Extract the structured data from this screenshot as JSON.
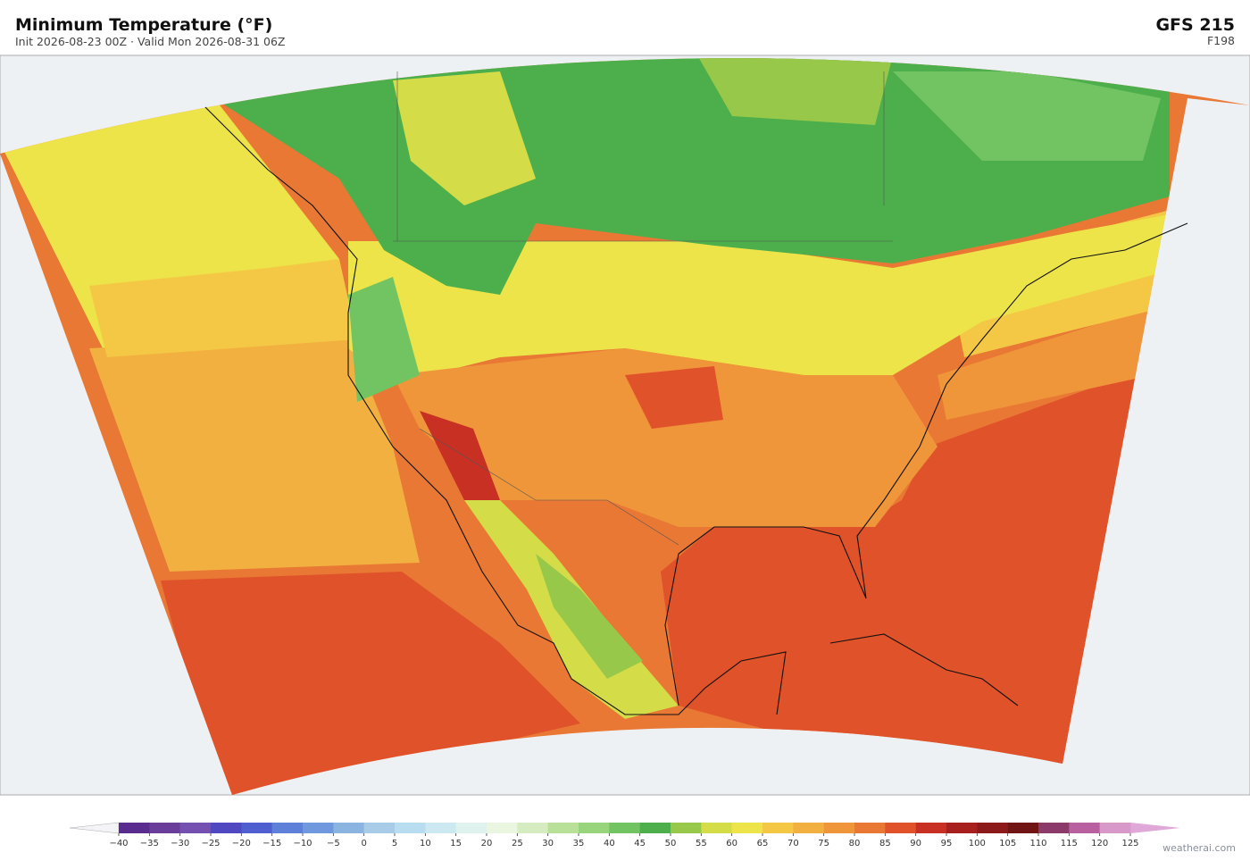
{
  "header": {
    "title": "Minimum Temperature  (°F)",
    "subtitle": "Init 2026-08-23 00Z  ·  Valid Mon 2026-08-31 06Z",
    "model": "GFS  215",
    "forecast_hour": "F198"
  },
  "colorbar": {
    "ticks": [
      {
        "value": -40,
        "label": "−40"
      },
      {
        "value": -35,
        "label": "−35"
      },
      {
        "value": -30,
        "label": "−30"
      },
      {
        "value": -25,
        "label": "−25"
      },
      {
        "value": -20,
        "label": "−20"
      },
      {
        "value": -15,
        "label": "−15"
      },
      {
        "value": -10,
        "label": "−10"
      },
      {
        "value": -5,
        "label": "−5"
      },
      0,
      5,
      10,
      15,
      20,
      25,
      30,
      35,
      40,
      45,
      50,
      55,
      60,
      65,
      70,
      75,
      80,
      85,
      90,
      95,
      100,
      105,
      110,
      115,
      120,
      125
    ],
    "colors": [
      "#5b2c8f",
      "#6a3d9a",
      "#7450b0",
      "#4f48c0",
      "#4f5fd0",
      "#5f80d8",
      "#6f98de",
      "#8cb4e0",
      "#a8cce8",
      "#b8dcf0",
      "#cce8f0",
      "#e0f2ee",
      "#eaf6e0",
      "#d4ecc0",
      "#b8e098",
      "#98d47c",
      "#72c462",
      "#4caf4c",
      "#98c84a",
      "#d4dc48",
      "#ece448",
      "#f4c844",
      "#f2b040",
      "#ef963a",
      "#e87834",
      "#e0522a",
      "#c83024",
      "#a8201e",
      "#8c1a1a",
      "#701414",
      "#8c3a6a",
      "#b860a0",
      "#d898c8"
    ],
    "under_color": "#f4f4f8",
    "over_color": "#e0a8d8"
  },
  "footer": {
    "credit": "weatherai.com"
  }
}
